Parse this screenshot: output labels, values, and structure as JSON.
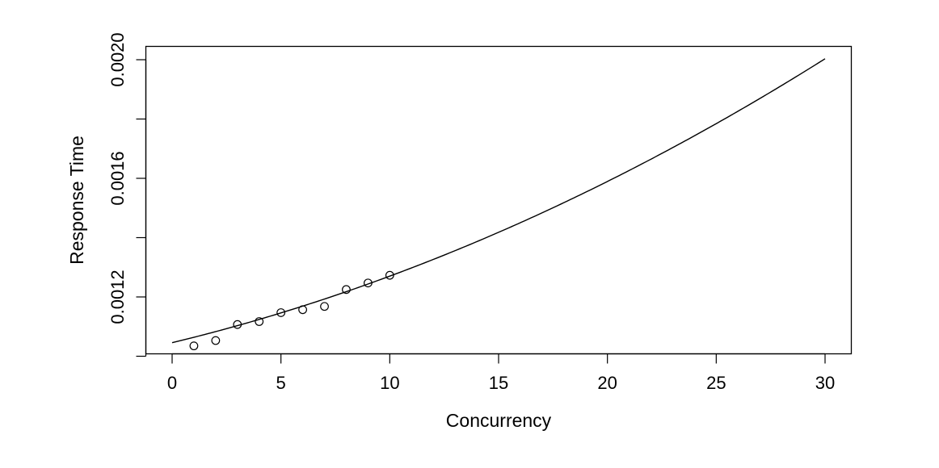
{
  "chart_data": {
    "type": "scatter",
    "title": "",
    "xlabel": "Concurrency",
    "ylabel": "Response Time",
    "xlim": [
      0,
      30
    ],
    "ylim": [
      0.00105,
      0.00204
    ],
    "x_ticks": [
      0,
      5,
      10,
      15,
      20,
      25,
      30
    ],
    "y_ticks": [
      0.001,
      0.0012,
      0.0014,
      0.0016,
      0.0018,
      0.002
    ],
    "x_tick_labels": [
      "0",
      "5",
      "10",
      "15",
      "20",
      "25",
      "30"
    ],
    "y_tick_labels": [
      "0.0012",
      "0.0016",
      "0.0020"
    ],
    "y_tick_label_values": [
      0.0012,
      0.0016,
      0.002
    ],
    "grid": false,
    "legend": "none",
    "colors": {
      "ink": "#000000",
      "background": "#ffffff"
    },
    "series": [
      {
        "kind": "points",
        "marker": "open-circle",
        "x": [
          1,
          2,
          3,
          4,
          5,
          6,
          7,
          8,
          9,
          10
        ],
        "y": [
          0.001035,
          0.001053,
          0.001107,
          0.001117,
          0.001147,
          0.001157,
          0.001168,
          0.001225,
          0.001247,
          0.001273
        ]
      },
      {
        "kind": "fitted-curve",
        "x": [
          0,
          5,
          10,
          15,
          20,
          25,
          30
        ],
        "y": [
          0.001046,
          0.001143,
          0.001274,
          0.00142,
          0.001588,
          0.00178,
          0.002006
        ]
      }
    ]
  }
}
